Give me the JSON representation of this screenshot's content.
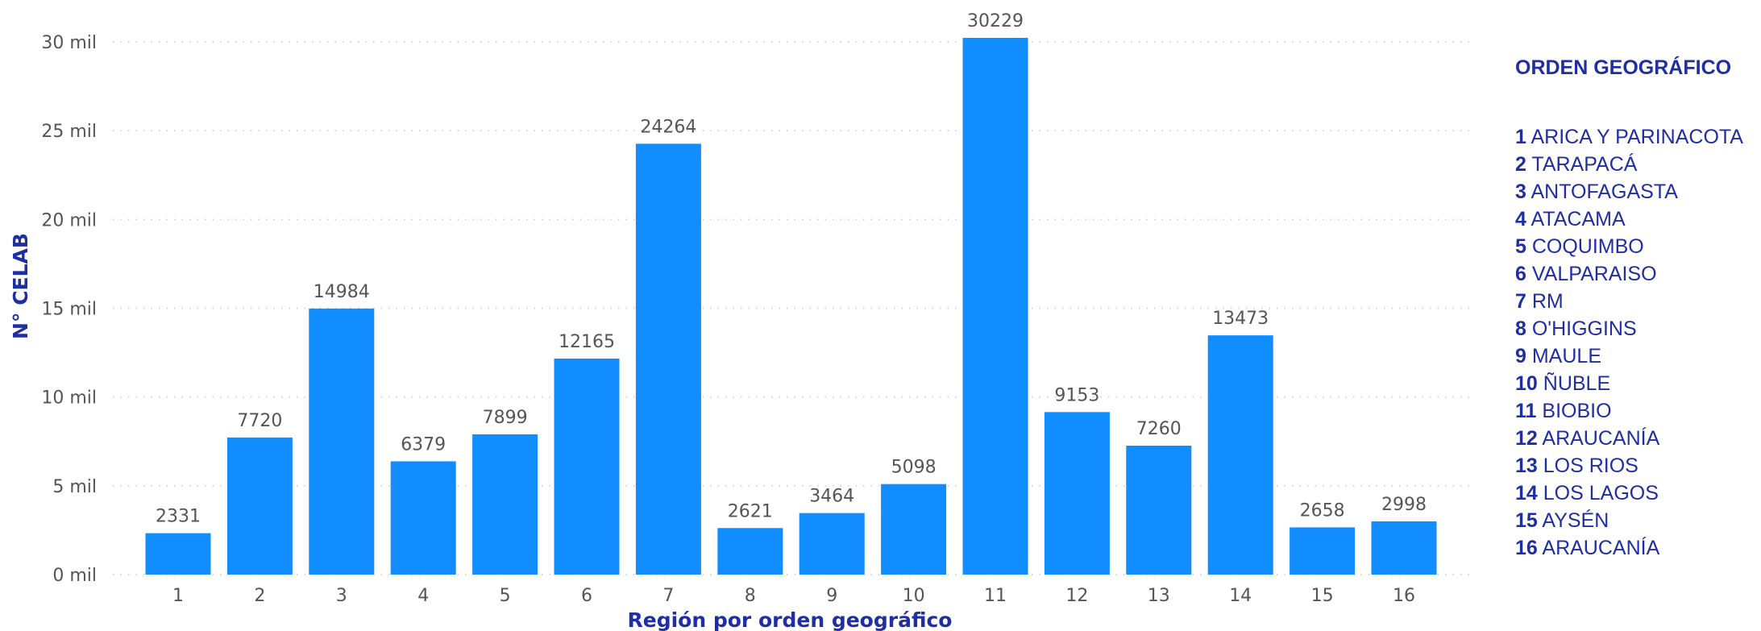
{
  "chart_data": {
    "type": "bar",
    "xlabel": "Región por orden geográfico",
    "ylabel": "N° CELAB",
    "categories": [
      "1",
      "2",
      "3",
      "4",
      "5",
      "6",
      "7",
      "8",
      "9",
      "10",
      "11",
      "12",
      "13",
      "14",
      "15",
      "16"
    ],
    "values": [
      2331,
      7720,
      14984,
      6379,
      7899,
      12165,
      24264,
      2621,
      3464,
      5098,
      30229,
      9153,
      7260,
      13473,
      2658,
      2998
    ],
    "ylim": [
      0,
      30000
    ],
    "yticks": [
      0,
      5000,
      10000,
      15000,
      20000,
      25000,
      30000
    ],
    "ytick_labels": [
      "0 mil",
      "5 mil",
      "10 mil",
      "15 mil",
      "20 mil",
      "25 mil",
      "30 mil"
    ],
    "grid": true,
    "legend_placement": "right"
  },
  "colors": {
    "bar": "#118DFF",
    "accent": "#1F2EA5",
    "grid": "#C8C8C8",
    "text": "#555555"
  },
  "legend": {
    "title": "ORDEN GEOGRÁFICO",
    "items": [
      {
        "num": "1",
        "label": "ARICA Y PARINACOTA"
      },
      {
        "num": "2",
        "label": "TARAPACÁ"
      },
      {
        "num": "3",
        "label": "ANTOFAGASTA"
      },
      {
        "num": "4",
        "label": "ATACAMA"
      },
      {
        "num": "5",
        "label": "COQUIMBO"
      },
      {
        "num": "6",
        "label": "VALPARAISO"
      },
      {
        "num": "7",
        "label": "RM"
      },
      {
        "num": "8",
        "label": "O'HIGGINS"
      },
      {
        "num": "9",
        "label": "MAULE"
      },
      {
        "num": "10",
        "label": "ÑUBLE"
      },
      {
        "num": "11",
        "label": "BIOBIO"
      },
      {
        "num": "12",
        "label": "ARAUCANÍA"
      },
      {
        "num": "13",
        "label": "LOS RIOS"
      },
      {
        "num": "14",
        "label": "LOS LAGOS"
      },
      {
        "num": "15",
        "label": "AYSÉN"
      },
      {
        "num": "16",
        "label": "ARAUCANÍA"
      }
    ]
  }
}
